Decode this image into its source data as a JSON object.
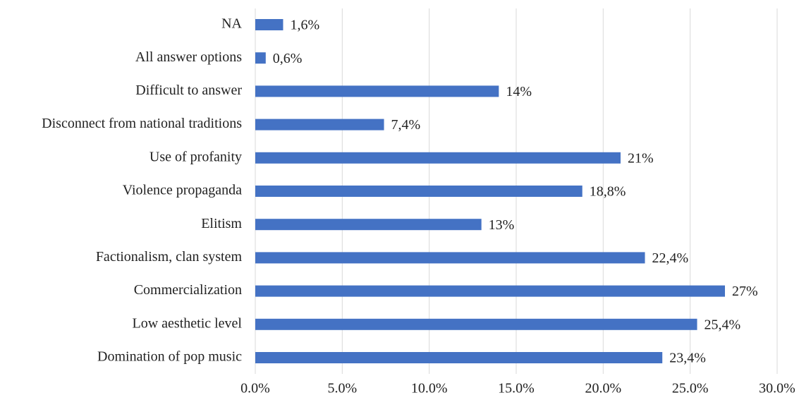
{
  "chart_data": {
    "type": "bar",
    "orientation": "horizontal",
    "categories": [
      "NA",
      "All answer options",
      "Difficult to answer",
      "Disconnect from national traditions",
      "Use of profanity",
      "Violence propaganda",
      "Elitism",
      "Factionalism, clan system",
      "Commercialization",
      "Low aesthetic level",
      "Domination of pop music"
    ],
    "values": [
      1.6,
      0.6,
      14,
      7.4,
      21,
      18.8,
      13,
      22.4,
      27,
      25.4,
      23.4
    ],
    "value_labels": [
      "1,6%",
      "0,6%",
      "14%",
      "7,4%",
      "21%",
      "18,8%",
      "13%",
      "22,4%",
      "27%",
      "25,4%",
      "23,4%"
    ],
    "color": "#4472c4",
    "xlim": [
      0,
      30
    ],
    "xticks": [
      {
        "value": 0,
        "label": "0.0%"
      },
      {
        "value": 5,
        "label": "5.0%"
      },
      {
        "value": 10,
        "label": "10.0%"
      },
      {
        "value": 15,
        "label": "15.0%"
      },
      {
        "value": 20,
        "label": "20.0%"
      },
      {
        "value": 25,
        "label": "25.0%"
      },
      {
        "value": 30,
        "label": "30.0%"
      }
    ],
    "grid": true
  }
}
